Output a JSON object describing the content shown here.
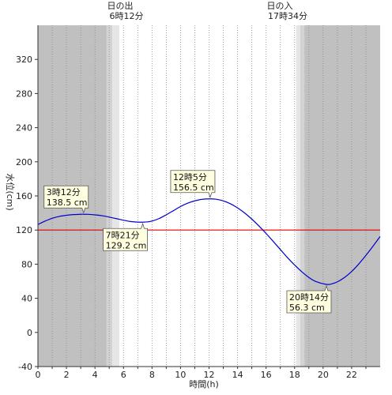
{
  "header": {
    "sunrise_label": "日の出",
    "sunrise_time": "6時12分",
    "sunset_label": "日の入",
    "sunset_time": "17時34分"
  },
  "colors": {
    "night": "#c0c0c0",
    "twilight_dark": "#d3d3d3",
    "twilight_light": "#e6e6e6",
    "day": "#ffffff",
    "curve": "#0000cc",
    "reference_line": "#e00000",
    "callout_bg": "#ffffe0"
  },
  "chart_data": {
    "type": "line",
    "xlabel": "時間(h)",
    "ylabel": "水位(cm)",
    "xlim": [
      0,
      24
    ],
    "ylim": [
      -40,
      360
    ],
    "x_ticks": [
      0,
      2,
      4,
      6,
      8,
      10,
      12,
      14,
      16,
      18,
      20,
      22
    ],
    "y_ticks": [
      -40,
      0,
      40,
      80,
      120,
      160,
      200,
      240,
      280,
      320
    ],
    "grid": "vertical dotted, hourly",
    "reference_level": 120,
    "daylight": {
      "sunrise_hour": 6.2,
      "sunset_hour": 17.567,
      "twilight_bands": [
        {
          "from": 4.8,
          "to": 5.2,
          "shade": "twilight_dark"
        },
        {
          "from": 5.2,
          "to": 5.7,
          "shade": "twilight_light"
        },
        {
          "from": 18.1,
          "to": 18.4,
          "shade": "twilight_light"
        },
        {
          "from": 18.4,
          "to": 18.7,
          "shade": "twilight_dark"
        }
      ]
    },
    "series": [
      {
        "x": [
          0,
          0.5,
          1,
          1.5,
          2,
          2.5,
          3,
          3.2,
          3.5,
          4,
          4.5,
          5,
          5.5,
          6,
          6.5,
          7,
          7.35,
          7.7,
          8,
          8.5,
          9,
          9.5,
          10,
          10.5,
          11,
          11.5,
          12.08,
          12.5,
          13,
          13.5,
          14,
          14.5,
          15,
          15.5,
          16,
          16.5,
          17,
          17.5,
          18,
          18.5,
          19,
          19.5,
          20.23,
          20.6,
          21,
          21.5,
          22,
          22.5,
          23,
          23.5,
          24
        ],
        "y": [
          126.5,
          130.5,
          133.8,
          136,
          137.3,
          138.1,
          138.5,
          138.5,
          138.4,
          137.8,
          136.8,
          135.2,
          133.4,
          131.5,
          130,
          129.3,
          129.2,
          129.6,
          130.5,
          133.5,
          137.9,
          142.7,
          147.6,
          151.5,
          154.2,
          156,
          156.5,
          156.1,
          154.2,
          150.8,
          146,
          140,
          132.8,
          124.8,
          116,
          106.7,
          97.2,
          87.7,
          79,
          71.2,
          64.5,
          59.6,
          56.3,
          56.9,
          59.3,
          64.4,
          71.4,
          80.2,
          90.3,
          101.1,
          112.5
        ]
      }
    ],
    "annotations": [
      {
        "time": "3時12分",
        "level": "138.5 cm",
        "x": 3.2,
        "y": 138.5,
        "side": "above"
      },
      {
        "time": "7時21分",
        "level": "129.2 cm",
        "x": 7.35,
        "y": 129.2,
        "side": "below"
      },
      {
        "time": "12時5分",
        "level": "156.5 cm",
        "x": 12.08,
        "y": 156.5,
        "side": "above"
      },
      {
        "time": "20時14分",
        "level": "56.3 cm",
        "x": 20.23,
        "y": 56.3,
        "side": "below"
      }
    ]
  }
}
